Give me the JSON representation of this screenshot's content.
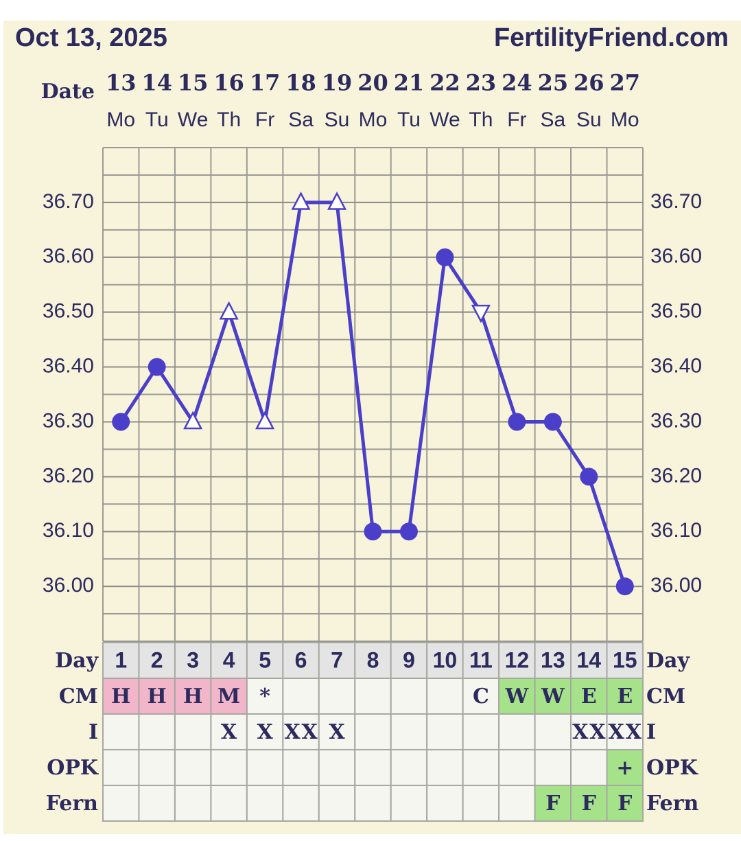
{
  "chart_data": {
    "type": "line",
    "title": "Oct 13, 2025",
    "source": "FertilityFriend.com",
    "x_label": "Date",
    "categories": [
      "13",
      "14",
      "15",
      "16",
      "17",
      "18",
      "19",
      "20",
      "21",
      "22",
      "23",
      "24",
      "25",
      "26",
      "27"
    ],
    "weekdays": [
      "Mo",
      "Tu",
      "We",
      "Th",
      "Fr",
      "Sa",
      "Su",
      "Mo",
      "Tu",
      "We",
      "Th",
      "Fr",
      "Sa",
      "Su",
      "Mo"
    ],
    "series": [
      {
        "color": "#4b3fc9",
        "values": [
          36.3,
          36.4,
          36.3,
          36.5,
          36.3,
          36.7,
          36.7,
          36.1,
          36.1,
          36.6,
          36.5,
          36.3,
          36.3,
          36.2,
          36.0
        ],
        "markers": [
          "circle",
          "circle",
          "triangle-up",
          "triangle-up",
          "triangle-up",
          "triangle-up",
          "triangle-up",
          "circle",
          "circle",
          "circle",
          "triangle-down",
          "circle",
          "circle",
          "circle",
          "circle"
        ]
      }
    ],
    "ylim": [
      35.9,
      36.8
    ],
    "yticks": [
      {
        "value": 36.0,
        "label": "36.00"
      },
      {
        "value": 36.1,
        "label": "36.10"
      },
      {
        "value": 36.2,
        "label": "36.20"
      },
      {
        "value": 36.3,
        "label": "36.30"
      },
      {
        "value": 36.4,
        "label": "36.40"
      },
      {
        "value": 36.5,
        "label": "36.50"
      },
      {
        "value": 36.6,
        "label": "36.60"
      },
      {
        "value": 36.7,
        "label": "36.70"
      }
    ],
    "minor_grid_step": 0.05,
    "grid": true,
    "table": {
      "rows": [
        {
          "label": "Day",
          "values": [
            1,
            2,
            3,
            4,
            5,
            6,
            7,
            8,
            9,
            10,
            11,
            12,
            13,
            14,
            15
          ],
          "colors": [
            null,
            null,
            null,
            null,
            null,
            null,
            null,
            null,
            null,
            null,
            null,
            null,
            null,
            null,
            null
          ]
        },
        {
          "label": "CM",
          "values": [
            "H",
            "H",
            "H",
            "M",
            "*",
            null,
            null,
            null,
            null,
            null,
            "C",
            "W",
            "W",
            "E",
            "E"
          ],
          "colors": [
            "#f1b6c9",
            "#f1b6c9",
            "#f1b6c9",
            "#f1b6c9",
            null,
            null,
            null,
            null,
            null,
            null,
            null,
            "#a6e28a",
            "#a6e28a",
            "#a6e28a",
            "#a6e28a"
          ]
        },
        {
          "label": "I",
          "values": [
            null,
            null,
            null,
            "X",
            "X",
            "XX",
            "X",
            null,
            null,
            null,
            null,
            null,
            null,
            "XX",
            "XX"
          ],
          "colors": [
            null,
            null,
            null,
            null,
            null,
            null,
            null,
            null,
            null,
            null,
            null,
            null,
            null,
            null,
            null
          ]
        },
        {
          "label": "OPK",
          "values": [
            null,
            null,
            null,
            null,
            null,
            null,
            null,
            null,
            null,
            null,
            null,
            null,
            null,
            null,
            "+"
          ],
          "colors": [
            null,
            null,
            null,
            null,
            null,
            null,
            null,
            null,
            null,
            null,
            null,
            null,
            null,
            null,
            "#a6e28a"
          ]
        },
        {
          "label": "Fern",
          "values": [
            null,
            null,
            null,
            null,
            null,
            null,
            null,
            null,
            null,
            null,
            null,
            null,
            "F",
            "F",
            "F"
          ],
          "colors": [
            null,
            null,
            null,
            null,
            null,
            null,
            null,
            null,
            null,
            null,
            null,
            null,
            "#a6e28a",
            "#a6e28a",
            "#a6e28a"
          ]
        }
      ]
    }
  }
}
